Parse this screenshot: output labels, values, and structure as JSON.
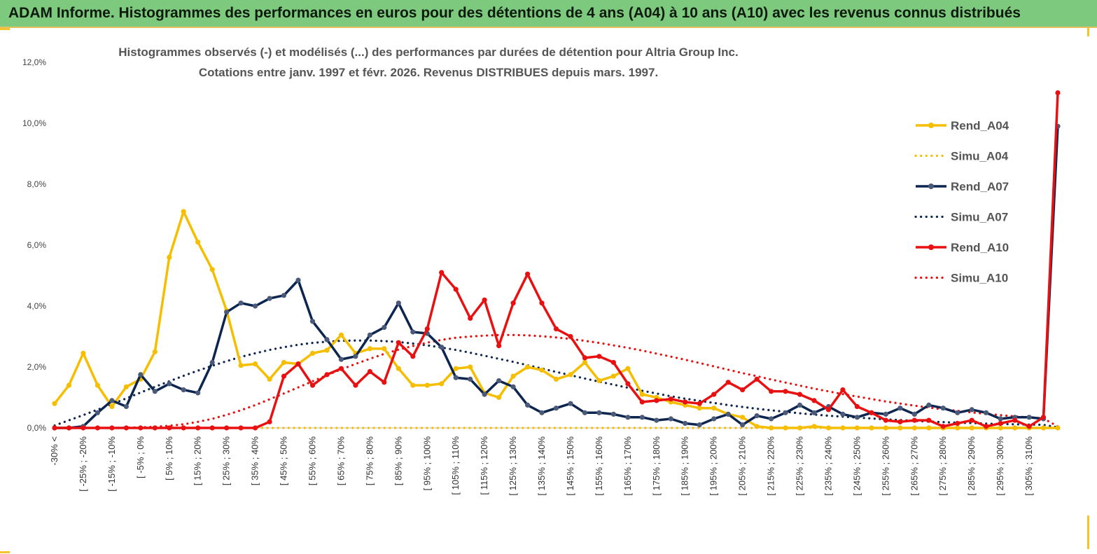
{
  "header": {
    "title": "ADAM Informe. Histogrammes des performances en euros pour des détentions de 4 ans (A04) à 10 ans (A10) avec les revenus connus distribués"
  },
  "chart_data": {
    "type": "line",
    "title_lines": [
      "Histogrammes observés (-) et modélisés (...) des performances par durées de détention pour Altria Group Inc.",
      "Cotations entre janv. 1997 et févr.  2026. Revenus DISTRIBUES depuis mars. 1997."
    ],
    "xlabel": "",
    "ylabel": "",
    "ylim": [
      0,
      12
    ],
    "y_ticks": [
      "0,0%",
      "2,0%",
      "4,0%",
      "6,0%",
      "8,0%",
      "10,0%",
      "12,0%"
    ],
    "x_tick_labels": [
      "-30% <",
      "[ -25% ; -20%",
      "[ -15% ; -10%",
      "[ -5% ; 0%",
      "[ 5% ; 10%",
      "[ 15% ; 20%",
      "[ 25% ; 30%",
      "[ 35% ; 40%",
      "[ 45% ; 50%",
      "[ 55% ; 60%",
      "[ 65% ; 70%",
      "[ 75% ; 80%",
      "[ 85% ; 90%",
      "[ 95% ; 100%",
      "[ 105% ; 110%",
      "[ 115% ; 120%",
      "[ 125% ; 130%",
      "[ 135% ; 140%",
      "[ 145% ; 150%",
      "[ 155% ; 160%",
      "[ 165% ; 170%",
      "[ 175% ; 180%",
      "[ 185% ; 190%",
      "[ 195% ; 200%",
      "[ 205% ; 210%",
      "[ 215% ; 220%",
      "[ 225% ; 230%",
      "[ 235% ; 240%",
      "[ 245% ; 250%",
      "[ 255% ; 260%",
      "[ 265% ; 270%",
      "[ 275% ; 280%",
      "[ 285% ; 290%",
      "[ 295% ; 300%",
      "[ 305% ; 310%"
    ],
    "legend_position": "right",
    "series": [
      {
        "name": "Rend_A04",
        "style": "solid-marker",
        "color": "#f5be00",
        "values": [
          0.8,
          1.4,
          2.45,
          1.4,
          0.7,
          1.35,
          1.6,
          2.5,
          5.6,
          7.1,
          6.1,
          5.2,
          3.85,
          2.05,
          2.1,
          1.6,
          2.15,
          2.1,
          2.45,
          2.55,
          3.05,
          2.45,
          2.6,
          2.6,
          1.95,
          1.4,
          1.4,
          1.45,
          1.95,
          2.0,
          1.15,
          1.0,
          1.7,
          2.0,
          1.9,
          1.6,
          1.75,
          2.15,
          1.55,
          1.7,
          1.95,
          1.1,
          1.0,
          0.85,
          0.75,
          0.65,
          0.65,
          0.45,
          0.35,
          0.05,
          0.0,
          0.0,
          0.0,
          0.05,
          0.0,
          0.0,
          0.0,
          0.0,
          0.0,
          0.0,
          0.0,
          0.0,
          0.0,
          0.0,
          0.0,
          0.0,
          0.0,
          0.0,
          0.0,
          0.0,
          0.0
        ]
      },
      {
        "name": "Simu_A04",
        "style": "dotted",
        "color": "#f5be00",
        "values": [
          0.0,
          0.0,
          0.0,
          0.0,
          0.0,
          0.0,
          0.0,
          0.0,
          0.0,
          0.0,
          0.0,
          0.0,
          0.0,
          0.0,
          0.0,
          0.0,
          0.0,
          0.0,
          0.0,
          0.0,
          0.0,
          0.0,
          0.0,
          0.0,
          0.0,
          0.0,
          0.0,
          0.0,
          0.0,
          0.0,
          0.0,
          0.0,
          0.0,
          0.0,
          0.0,
          0.0,
          0.0,
          0.0,
          0.0,
          0.0,
          0.0,
          0.0,
          0.0,
          0.0,
          0.0,
          0.0,
          0.0,
          0.0,
          0.0,
          0.0,
          0.0,
          0.0,
          0.0,
          0.0,
          0.0,
          0.0,
          0.0,
          0.0,
          0.0,
          0.0,
          0.0,
          0.0,
          0.0,
          0.0,
          0.0,
          0.0,
          0.0,
          0.0,
          0.0,
          0.0,
          0.0
        ]
      },
      {
        "name": "Rend_A07",
        "style": "solid-marker",
        "color": "#0d2650",
        "values": [
          0.0,
          0.0,
          0.05,
          0.5,
          0.9,
          0.7,
          1.75,
          1.2,
          1.45,
          1.25,
          1.15,
          2.15,
          3.8,
          4.1,
          4.0,
          4.25,
          4.35,
          4.85,
          3.5,
          2.9,
          2.25,
          2.35,
          3.05,
          3.3,
          4.1,
          3.15,
          3.1,
          2.65,
          1.65,
          1.6,
          1.1,
          1.55,
          1.35,
          0.75,
          0.5,
          0.65,
          0.8,
          0.5,
          0.5,
          0.45,
          0.35,
          0.35,
          0.25,
          0.3,
          0.15,
          0.1,
          0.3,
          0.45,
          0.1,
          0.4,
          0.3,
          0.5,
          0.75,
          0.5,
          0.7,
          0.45,
          0.35,
          0.5,
          0.45,
          0.65,
          0.45,
          0.75,
          0.65,
          0.5,
          0.6,
          0.5,
          0.3,
          0.35,
          0.35,
          0.3,
          9.9
        ]
      },
      {
        "name": "Simu_A07",
        "style": "dotted",
        "color": "#0d2650",
        "values": [
          0.08,
          0.25,
          0.42,
          0.6,
          0.78,
          0.97,
          1.16,
          1.35,
          1.53,
          1.71,
          1.88,
          2.04,
          2.19,
          2.33,
          2.45,
          2.56,
          2.65,
          2.73,
          2.79,
          2.83,
          2.86,
          2.87,
          2.87,
          2.85,
          2.82,
          2.77,
          2.71,
          2.64,
          2.56,
          2.47,
          2.37,
          2.27,
          2.17,
          2.06,
          1.95,
          1.84,
          1.73,
          1.62,
          1.52,
          1.42,
          1.32,
          1.22,
          1.13,
          1.04,
          0.96,
          0.89,
          0.82,
          0.75,
          0.69,
          0.63,
          0.58,
          0.53,
          0.48,
          0.44,
          0.4,
          0.37,
          0.34,
          0.31,
          0.28,
          0.26,
          0.23,
          0.21,
          0.19,
          0.17,
          0.16,
          0.14,
          0.13,
          0.12,
          0.11,
          0.1,
          0.02
        ]
      },
      {
        "name": "Rend_A10",
        "style": "solid-marker",
        "color": "#e81010",
        "values": [
          0.0,
          0.0,
          0.0,
          0.0,
          0.0,
          0.0,
          0.0,
          0.0,
          0.0,
          0.0,
          0.0,
          0.0,
          0.0,
          0.0,
          0.0,
          0.2,
          1.7,
          2.1,
          1.4,
          1.75,
          1.95,
          1.4,
          1.85,
          1.5,
          2.8,
          2.35,
          3.25,
          5.1,
          4.55,
          3.6,
          4.2,
          2.7,
          4.1,
          5.05,
          4.1,
          3.25,
          3.0,
          2.3,
          2.35,
          2.15,
          1.45,
          0.85,
          0.9,
          0.95,
          0.85,
          0.8,
          1.1,
          1.5,
          1.25,
          1.6,
          1.2,
          1.2,
          1.1,
          0.9,
          0.6,
          1.25,
          0.7,
          0.5,
          0.25,
          0.2,
          0.25,
          0.25,
          0.05,
          0.15,
          0.25,
          0.05,
          0.15,
          0.25,
          0.05,
          0.35,
          11.0
        ]
      },
      {
        "name": "Simu_A10",
        "style": "dotted",
        "color": "#e81010",
        "values": [
          0.0,
          0.0,
          0.0,
          0.0,
          0.0,
          0.01,
          0.02,
          0.04,
          0.07,
          0.12,
          0.2,
          0.3,
          0.43,
          0.58,
          0.75,
          0.94,
          1.13,
          1.33,
          1.53,
          1.73,
          1.92,
          2.1,
          2.27,
          2.43,
          2.57,
          2.69,
          2.8,
          2.89,
          2.96,
          3.0,
          3.03,
          3.05,
          3.05,
          3.04,
          3.01,
          2.97,
          2.92,
          2.86,
          2.79,
          2.71,
          2.63,
          2.54,
          2.44,
          2.34,
          2.24,
          2.13,
          2.02,
          1.91,
          1.8,
          1.7,
          1.59,
          1.49,
          1.39,
          1.29,
          1.2,
          1.11,
          1.03,
          0.95,
          0.87,
          0.8,
          0.73,
          0.67,
          0.61,
          0.56,
          0.51,
          0.46,
          0.42,
          0.38,
          0.35,
          0.31,
          0.05
        ]
      }
    ]
  }
}
